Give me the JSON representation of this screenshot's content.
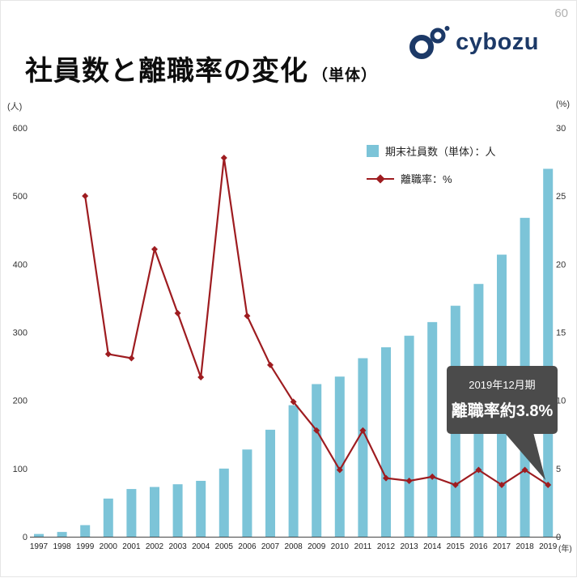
{
  "page": {
    "number": "60"
  },
  "header": {
    "title": "社員数と離職率の変化",
    "title_suffix": "（単体）",
    "logo_text": "cybozu"
  },
  "chart_data": {
    "type": "bar+line",
    "categories": [
      "1997",
      "1998",
      "1999",
      "2000",
      "2001",
      "2002",
      "2003",
      "2004",
      "2005",
      "2006",
      "2007",
      "2008",
      "2009",
      "2010",
      "2011",
      "2012",
      "2013",
      "2014",
      "2015",
      "2016",
      "2017",
      "2018",
      "2019"
    ],
    "series": [
      {
        "name": "期末社員数（単体）：人",
        "type": "bar",
        "axis": "left",
        "color": "#7cc4d8",
        "values": [
          4,
          7,
          17,
          56,
          70,
          73,
          77,
          82,
          100,
          128,
          157,
          193,
          224,
          235,
          262,
          278,
          295,
          315,
          339,
          371,
          414,
          468,
          540
        ]
      },
      {
        "name": "離職率：%",
        "type": "line",
        "axis": "right",
        "color": "#9e1c20",
        "values": [
          null,
          null,
          25.0,
          13.4,
          13.1,
          21.1,
          16.4,
          11.7,
          27.8,
          16.2,
          12.6,
          9.9,
          7.8,
          4.9,
          7.8,
          4.3,
          4.1,
          4.4,
          3.8,
          4.9,
          3.8,
          4.9,
          3.8
        ]
      }
    ],
    "left_axis": {
      "unit": "(人)",
      "min": 0,
      "max": 600,
      "step": 100
    },
    "right_axis": {
      "unit": "(%)",
      "min": 0,
      "max": 30,
      "step": 5
    },
    "x_axis_unit": "(年)",
    "legend_position": "top-right-inside",
    "grid": false,
    "annotation": {
      "line1": "2019年12月期",
      "line2": "離職率約3.8%"
    },
    "annotation_target": {
      "category": "2019",
      "value_percent": 3.8
    }
  }
}
